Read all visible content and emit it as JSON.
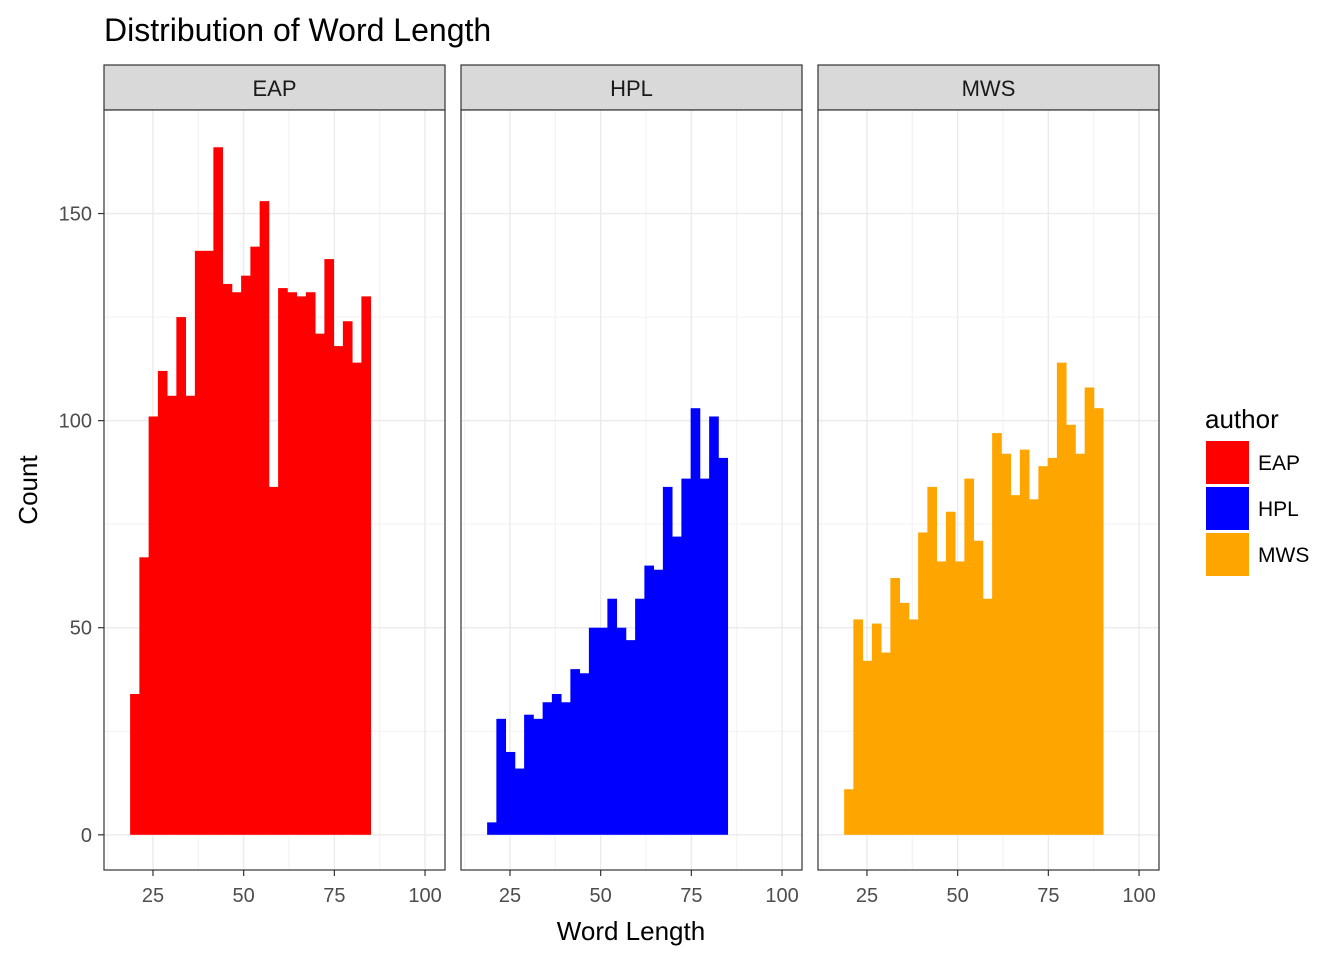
{
  "chart_data": {
    "type": "bar",
    "subtype": "faceted-histogram",
    "title": "Distribution of  Word Length",
    "xlabel": "Word Length",
    "ylabel": "Count",
    "xlim": [
      11.5,
      105.5
    ],
    "ylim": [
      -8.5,
      175
    ],
    "x_ticks": [
      25,
      50,
      75,
      100
    ],
    "y_ticks": [
      0,
      50,
      100,
      150
    ],
    "bin_width": 2.55,
    "bin_start": 18.7,
    "grid": true,
    "legend": {
      "title": "author",
      "position": "right"
    },
    "facets": [
      {
        "name": "EAP",
        "color": "#FF0000",
        "values": [
          34,
          67,
          101,
          112,
          106,
          125,
          106,
          141,
          141,
          166,
          133,
          131,
          135,
          142,
          153,
          84,
          132,
          131,
          130,
          131,
          121,
          139,
          118,
          124,
          114,
          130
        ]
      },
      {
        "name": "HPL",
        "color": "#0000FF",
        "values": [
          3,
          28,
          20,
          16,
          29,
          28,
          32,
          34,
          32,
          40,
          39,
          50,
          50,
          57,
          50,
          47,
          57,
          65,
          64,
          84,
          72,
          86,
          103,
          86,
          101,
          91
        ]
      },
      {
        "name": "MWS",
        "color": "#FFA500",
        "values": [
          11,
          52,
          42,
          51,
          44,
          62,
          56,
          52,
          73,
          84,
          66,
          78,
          66,
          86,
          71,
          57,
          97,
          92,
          82,
          93,
          81,
          89,
          91,
          114,
          99,
          92,
          108,
          103
        ]
      }
    ]
  }
}
